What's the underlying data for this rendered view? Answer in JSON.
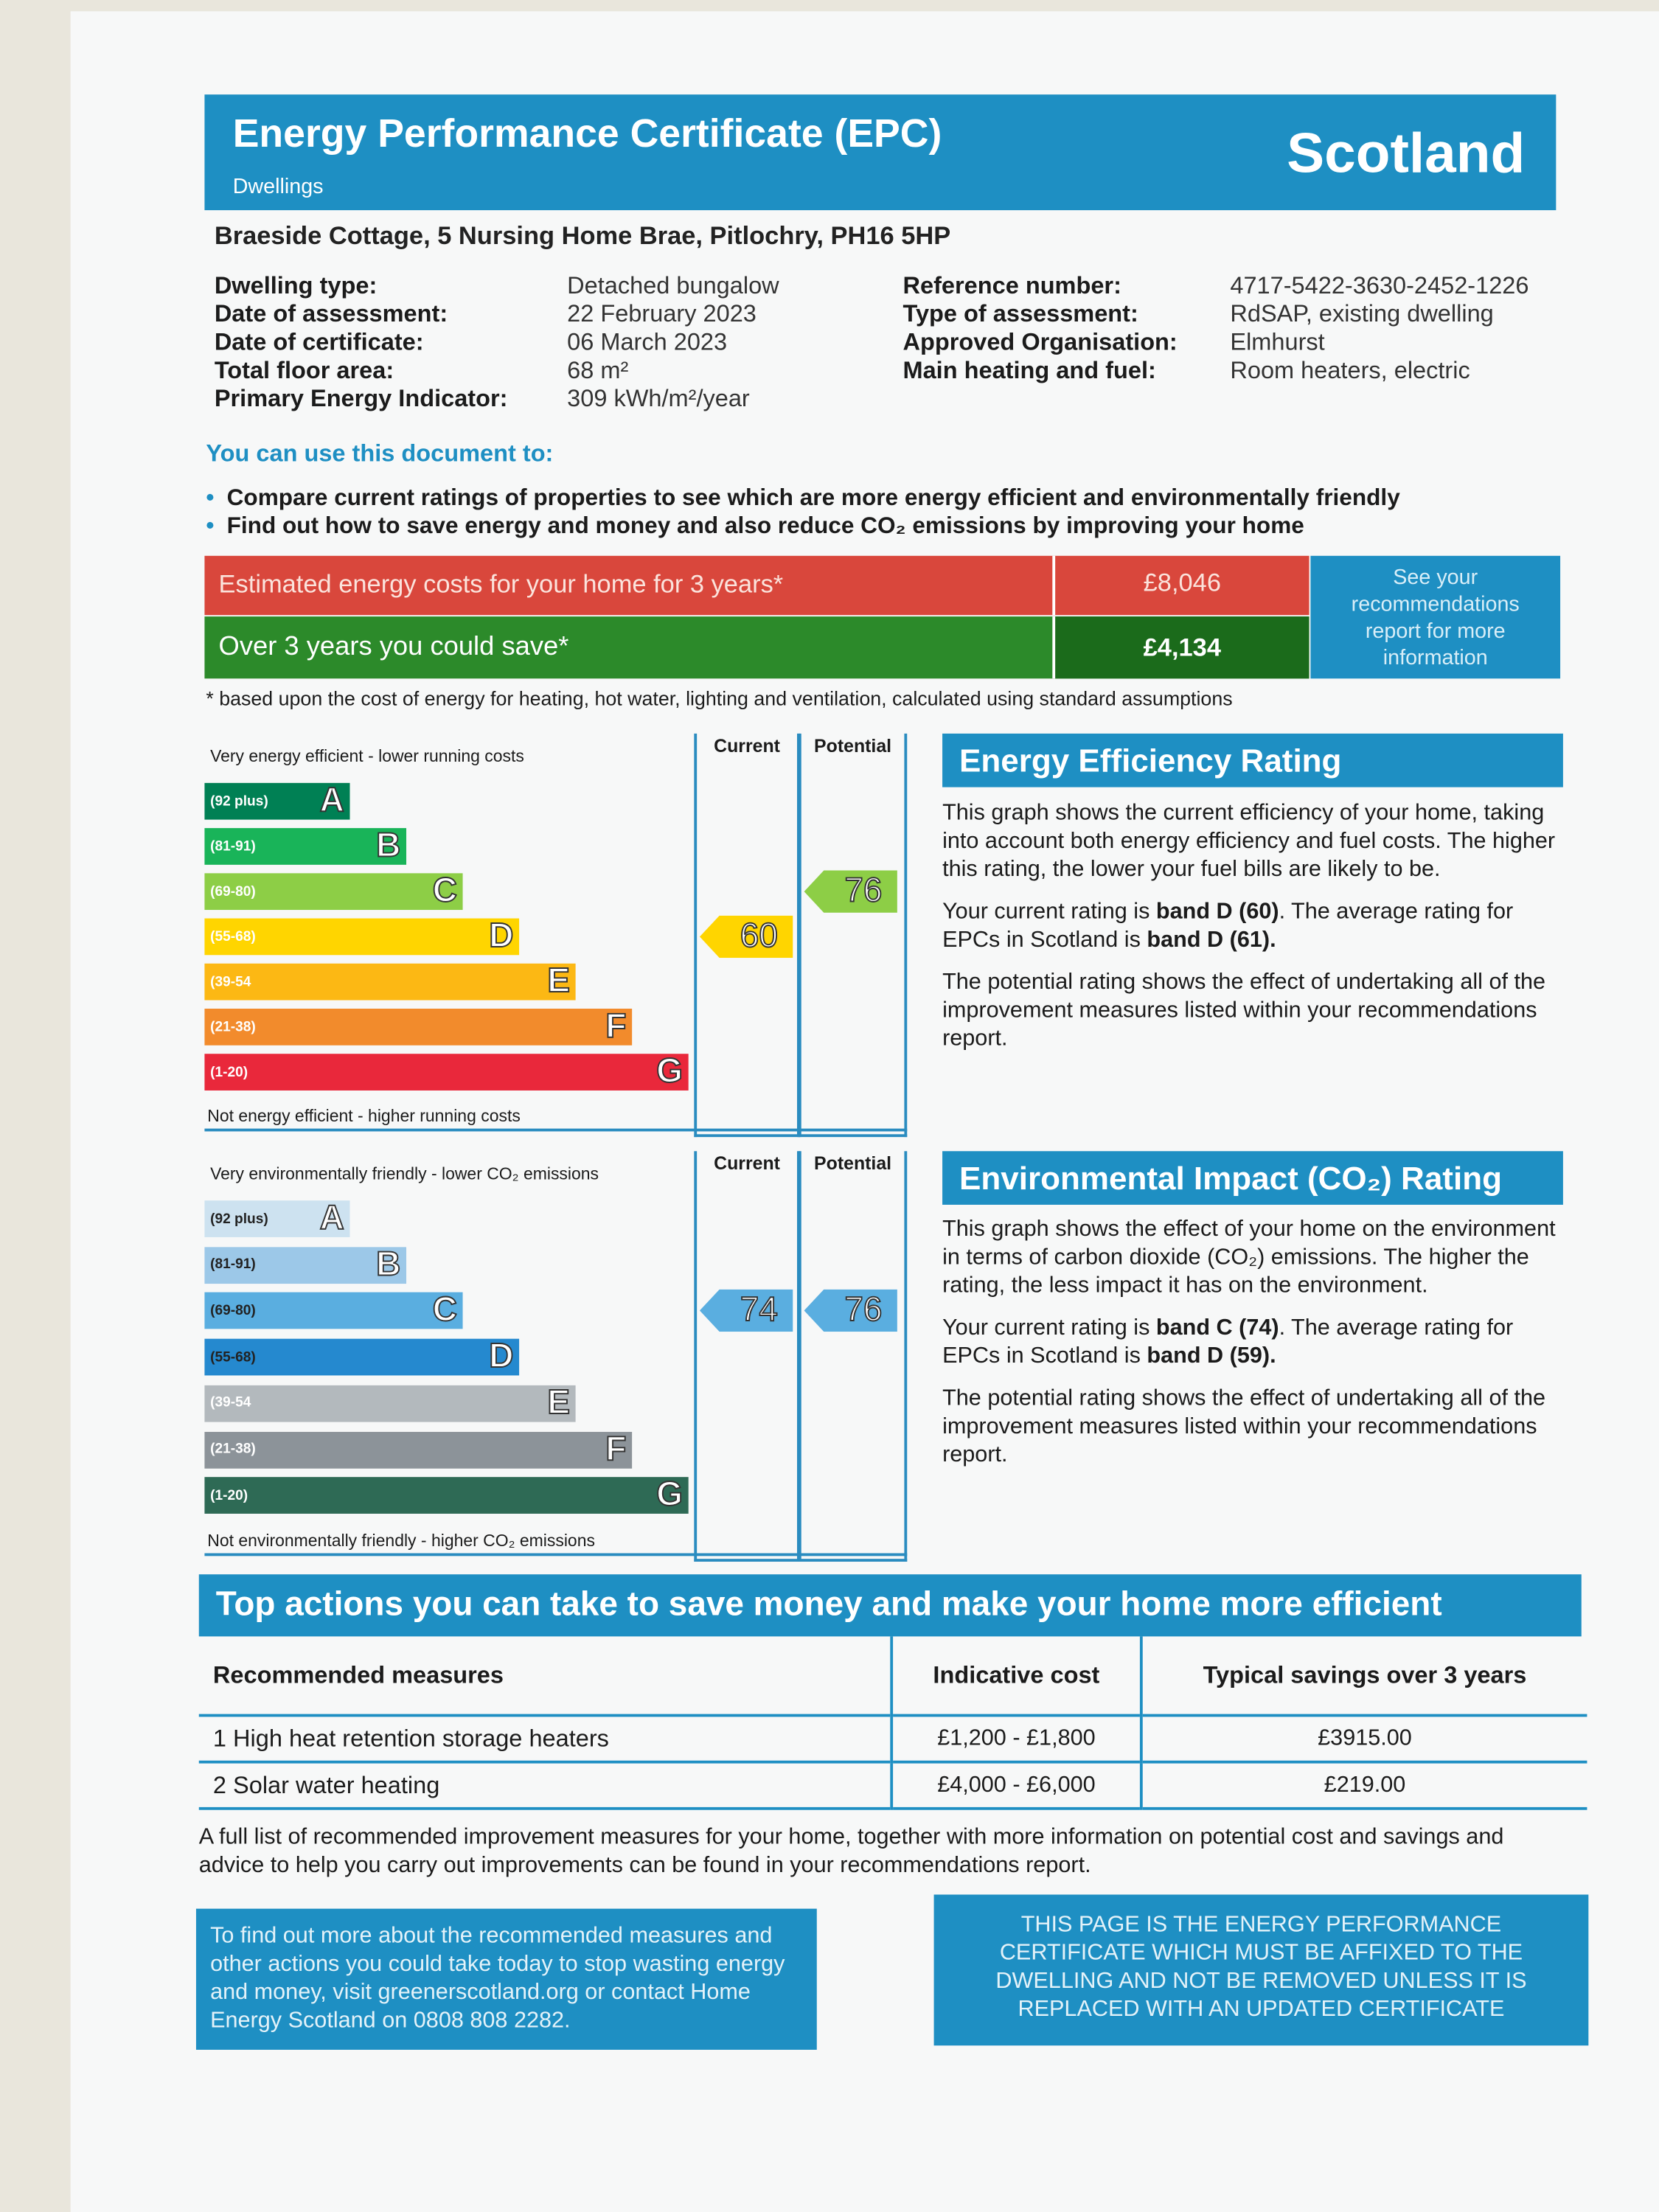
{
  "header": {
    "title": "Energy Performance Certificate (EPC)",
    "subtitle": "Dwellings",
    "region": "Scotland"
  },
  "address": "Braeside Cottage, 5 Nursing Home Brae, Pitlochry, PH16 5HP",
  "details": {
    "left": [
      [
        "Dwelling type:",
        "Detached bungalow"
      ],
      [
        "Date of assessment:",
        "22 February 2023"
      ],
      [
        "Date of certificate:",
        "06 March 2023"
      ],
      [
        "Total floor area:",
        "68 m²"
      ],
      [
        "Primary Energy Indicator:",
        "309 kWh/m²/year"
      ]
    ],
    "right": [
      [
        "Reference number:",
        "4717-5422-3630-2452-1226"
      ],
      [
        "Type of assessment:",
        "RdSAP, existing dwelling"
      ],
      [
        "Approved Organisation:",
        "Elmhurst"
      ],
      [
        "Main heating and fuel:",
        "Room heaters, electric"
      ]
    ]
  },
  "uses": {
    "heading": "You can use this document to:",
    "items": [
      "Compare current ratings of properties to see which are more energy efficient and environmentally friendly",
      "Find out how to save energy and money and also reduce CO₂ emissions by improving your home"
    ]
  },
  "costs": {
    "estimated_label": "Estimated energy costs for your home for 3 years*",
    "estimated_value": "£8,046",
    "saving_label": "Over 3 years you could save*",
    "saving_value": "£4,134",
    "report_note": "See your recommendations report for more information",
    "footnote": "* based upon the cost of energy for heating, hot water, lighting and ventilation, calculated using standard assumptions"
  },
  "energy_rating": {
    "title": "Energy Efficiency Rating",
    "top_note": "Very energy efficient - lower running costs",
    "bottom_note": "Not energy efficient - higher running costs",
    "col_current": "Current",
    "col_potential": "Potential",
    "bands": [
      [
        "(92 plus)",
        "A"
      ],
      [
        "(81-91)",
        "B"
      ],
      [
        "(69-80)",
        "C"
      ],
      [
        "(55-68)",
        "D"
      ],
      [
        "(39-54",
        "E"
      ],
      [
        "(21-38)",
        "F"
      ],
      [
        "(1-20)",
        "G"
      ]
    ],
    "current": "60",
    "potential": "76",
    "paragraphs": [
      [
        "This graph shows the current efficiency of your home, taking into account both energy efficiency and fuel costs. The higher this rating, the lower your fuel bills are likely to be."
      ],
      [
        "Your current rating is ",
        "band D (60)",
        ". The average rating for EPCs in Scotland is ",
        "band D (61)."
      ],
      [
        "The potential rating shows the effect of undertaking all of the improvement measures listed within your recommendations report."
      ]
    ]
  },
  "environmental_rating": {
    "title": "Environmental Impact (CO₂) Rating",
    "top_note": "Very environmentally friendly - lower CO₂ emissions",
    "bottom_note": "Not environmentally friendly - higher CO₂ emissions",
    "col_current": "Current",
    "col_potential": "Potential",
    "bands": [
      [
        "(92 plus)",
        "A"
      ],
      [
        "(81-91)",
        "B"
      ],
      [
        "(69-80)",
        "C"
      ],
      [
        "(55-68)",
        "D"
      ],
      [
        "(39-54",
        "E"
      ],
      [
        "(21-38)",
        "F"
      ],
      [
        "(1-20)",
        "G"
      ]
    ],
    "current": "74",
    "potential": "76",
    "paragraphs": [
      [
        "This graph shows the effect of your home on the environment in terms of carbon dioxide (CO₂) emissions. The higher the rating, the less impact it has on the environment."
      ],
      [
        "Your current rating is ",
        "band C (74)",
        ". The average rating for EPCs in Scotland is ",
        "band D (59)."
      ],
      [
        "The potential rating shows the effect of undertaking all of the improvement measures listed within your recommendations report."
      ]
    ]
  },
  "actions": {
    "title": "Top actions you can take to save money and make your home more efficient",
    "header": [
      "Recommended measures",
      "Indicative cost",
      "Typical savings over 3 years"
    ],
    "rows": [
      [
        "1 High heat retention storage heaters",
        "£1,200 - £1,800",
        "£3915.00"
      ],
      [
        "2 Solar water heating",
        "£4,000 - £6,000",
        "£219.00"
      ]
    ],
    "note": "A full list of recommended improvement measures for your home, together with more information on potential cost and savings and advice to help you carry out improvements can be found in your recommendations report."
  },
  "footer": {
    "left": "To find out more about the recommended measures and other actions you could take today to stop wasting energy and money, visit greenerscotland.org or contact Home Energy Scotland on 0808 808 2282.",
    "right": "THIS PAGE IS THE ENERGY PERFORMANCE CERTIFICATE WHICH MUST BE AFFIXED TO THE DWELLING AND NOT BE REMOVED UNLESS IT IS REPLACED WITH AN UPDATED CERTIFICATE"
  }
}
